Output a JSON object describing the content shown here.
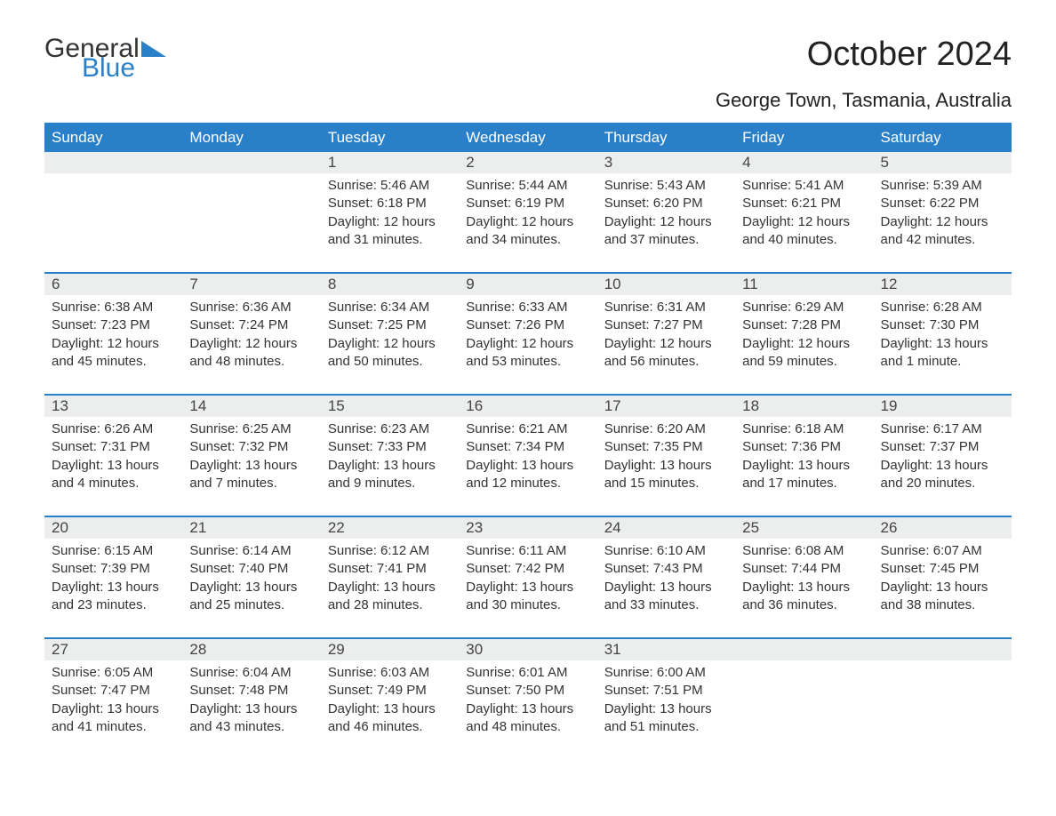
{
  "logo": {
    "word1": "General",
    "word2": "Blue",
    "accent_color": "#2a7fc9"
  },
  "title": "October 2024",
  "subtitle": "George Town, Tasmania, Australia",
  "header_bg": "#2a7fc9",
  "daybar_bg": "#eceded",
  "text_color": "#333333",
  "day_headers": [
    "Sunday",
    "Monday",
    "Tuesday",
    "Wednesday",
    "Thursday",
    "Friday",
    "Saturday"
  ],
  "weeks": [
    [
      null,
      null,
      {
        "n": "1",
        "sr": "Sunrise: 5:46 AM",
        "ss": "Sunset: 6:18 PM",
        "dl1": "Daylight: 12 hours",
        "dl2": "and 31 minutes."
      },
      {
        "n": "2",
        "sr": "Sunrise: 5:44 AM",
        "ss": "Sunset: 6:19 PM",
        "dl1": "Daylight: 12 hours",
        "dl2": "and 34 minutes."
      },
      {
        "n": "3",
        "sr": "Sunrise: 5:43 AM",
        "ss": "Sunset: 6:20 PM",
        "dl1": "Daylight: 12 hours",
        "dl2": "and 37 minutes."
      },
      {
        "n": "4",
        "sr": "Sunrise: 5:41 AM",
        "ss": "Sunset: 6:21 PM",
        "dl1": "Daylight: 12 hours",
        "dl2": "and 40 minutes."
      },
      {
        "n": "5",
        "sr": "Sunrise: 5:39 AM",
        "ss": "Sunset: 6:22 PM",
        "dl1": "Daylight: 12 hours",
        "dl2": "and 42 minutes."
      }
    ],
    [
      {
        "n": "6",
        "sr": "Sunrise: 6:38 AM",
        "ss": "Sunset: 7:23 PM",
        "dl1": "Daylight: 12 hours",
        "dl2": "and 45 minutes."
      },
      {
        "n": "7",
        "sr": "Sunrise: 6:36 AM",
        "ss": "Sunset: 7:24 PM",
        "dl1": "Daylight: 12 hours",
        "dl2": "and 48 minutes."
      },
      {
        "n": "8",
        "sr": "Sunrise: 6:34 AM",
        "ss": "Sunset: 7:25 PM",
        "dl1": "Daylight: 12 hours",
        "dl2": "and 50 minutes."
      },
      {
        "n": "9",
        "sr": "Sunrise: 6:33 AM",
        "ss": "Sunset: 7:26 PM",
        "dl1": "Daylight: 12 hours",
        "dl2": "and 53 minutes."
      },
      {
        "n": "10",
        "sr": "Sunrise: 6:31 AM",
        "ss": "Sunset: 7:27 PM",
        "dl1": "Daylight: 12 hours",
        "dl2": "and 56 minutes."
      },
      {
        "n": "11",
        "sr": "Sunrise: 6:29 AM",
        "ss": "Sunset: 7:28 PM",
        "dl1": "Daylight: 12 hours",
        "dl2": "and 59 minutes."
      },
      {
        "n": "12",
        "sr": "Sunrise: 6:28 AM",
        "ss": "Sunset: 7:30 PM",
        "dl1": "Daylight: 13 hours",
        "dl2": "and 1 minute."
      }
    ],
    [
      {
        "n": "13",
        "sr": "Sunrise: 6:26 AM",
        "ss": "Sunset: 7:31 PM",
        "dl1": "Daylight: 13 hours",
        "dl2": "and 4 minutes."
      },
      {
        "n": "14",
        "sr": "Sunrise: 6:25 AM",
        "ss": "Sunset: 7:32 PM",
        "dl1": "Daylight: 13 hours",
        "dl2": "and 7 minutes."
      },
      {
        "n": "15",
        "sr": "Sunrise: 6:23 AM",
        "ss": "Sunset: 7:33 PM",
        "dl1": "Daylight: 13 hours",
        "dl2": "and 9 minutes."
      },
      {
        "n": "16",
        "sr": "Sunrise: 6:21 AM",
        "ss": "Sunset: 7:34 PM",
        "dl1": "Daylight: 13 hours",
        "dl2": "and 12 minutes."
      },
      {
        "n": "17",
        "sr": "Sunrise: 6:20 AM",
        "ss": "Sunset: 7:35 PM",
        "dl1": "Daylight: 13 hours",
        "dl2": "and 15 minutes."
      },
      {
        "n": "18",
        "sr": "Sunrise: 6:18 AM",
        "ss": "Sunset: 7:36 PM",
        "dl1": "Daylight: 13 hours",
        "dl2": "and 17 minutes."
      },
      {
        "n": "19",
        "sr": "Sunrise: 6:17 AM",
        "ss": "Sunset: 7:37 PM",
        "dl1": "Daylight: 13 hours",
        "dl2": "and 20 minutes."
      }
    ],
    [
      {
        "n": "20",
        "sr": "Sunrise: 6:15 AM",
        "ss": "Sunset: 7:39 PM",
        "dl1": "Daylight: 13 hours",
        "dl2": "and 23 minutes."
      },
      {
        "n": "21",
        "sr": "Sunrise: 6:14 AM",
        "ss": "Sunset: 7:40 PM",
        "dl1": "Daylight: 13 hours",
        "dl2": "and 25 minutes."
      },
      {
        "n": "22",
        "sr": "Sunrise: 6:12 AM",
        "ss": "Sunset: 7:41 PM",
        "dl1": "Daylight: 13 hours",
        "dl2": "and 28 minutes."
      },
      {
        "n": "23",
        "sr": "Sunrise: 6:11 AM",
        "ss": "Sunset: 7:42 PM",
        "dl1": "Daylight: 13 hours",
        "dl2": "and 30 minutes."
      },
      {
        "n": "24",
        "sr": "Sunrise: 6:10 AM",
        "ss": "Sunset: 7:43 PM",
        "dl1": "Daylight: 13 hours",
        "dl2": "and 33 minutes."
      },
      {
        "n": "25",
        "sr": "Sunrise: 6:08 AM",
        "ss": "Sunset: 7:44 PM",
        "dl1": "Daylight: 13 hours",
        "dl2": "and 36 minutes."
      },
      {
        "n": "26",
        "sr": "Sunrise: 6:07 AM",
        "ss": "Sunset: 7:45 PM",
        "dl1": "Daylight: 13 hours",
        "dl2": "and 38 minutes."
      }
    ],
    [
      {
        "n": "27",
        "sr": "Sunrise: 6:05 AM",
        "ss": "Sunset: 7:47 PM",
        "dl1": "Daylight: 13 hours",
        "dl2": "and 41 minutes."
      },
      {
        "n": "28",
        "sr": "Sunrise: 6:04 AM",
        "ss": "Sunset: 7:48 PM",
        "dl1": "Daylight: 13 hours",
        "dl2": "and 43 minutes."
      },
      {
        "n": "29",
        "sr": "Sunrise: 6:03 AM",
        "ss": "Sunset: 7:49 PM",
        "dl1": "Daylight: 13 hours",
        "dl2": "and 46 minutes."
      },
      {
        "n": "30",
        "sr": "Sunrise: 6:01 AM",
        "ss": "Sunset: 7:50 PM",
        "dl1": "Daylight: 13 hours",
        "dl2": "and 48 minutes."
      },
      {
        "n": "31",
        "sr": "Sunrise: 6:00 AM",
        "ss": "Sunset: 7:51 PM",
        "dl1": "Daylight: 13 hours",
        "dl2": "and 51 minutes."
      },
      null,
      null
    ]
  ]
}
